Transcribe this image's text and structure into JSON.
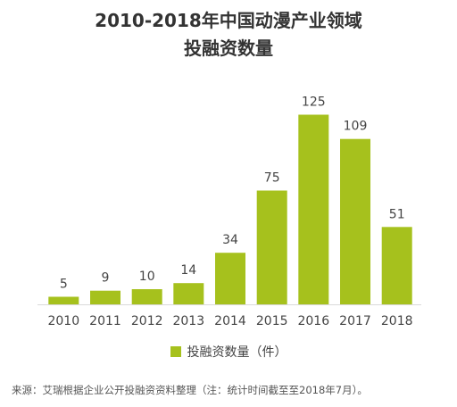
{
  "chart_data": {
    "type": "bar",
    "title_lines": [
      "2010-2018年中国动漫产业领域",
      "投融资数量"
    ],
    "categories": [
      "2010",
      "2011",
      "2012",
      "2013",
      "2014",
      "2015",
      "2016",
      "2017",
      "2018"
    ],
    "series": [
      {
        "name": "投融资数量（件）",
        "values": [
          5,
          9,
          10,
          14,
          34,
          75,
          125,
          109,
          51
        ]
      }
    ],
    "ylim": [
      0,
      130
    ],
    "grid": false,
    "legend_position": "bottom",
    "data_labels": true,
    "bar_color": "#a6c11d",
    "source": "来源：艾瑞根据企业公开投融资资料整理（注：统计时间截至至2018年7月）。"
  }
}
